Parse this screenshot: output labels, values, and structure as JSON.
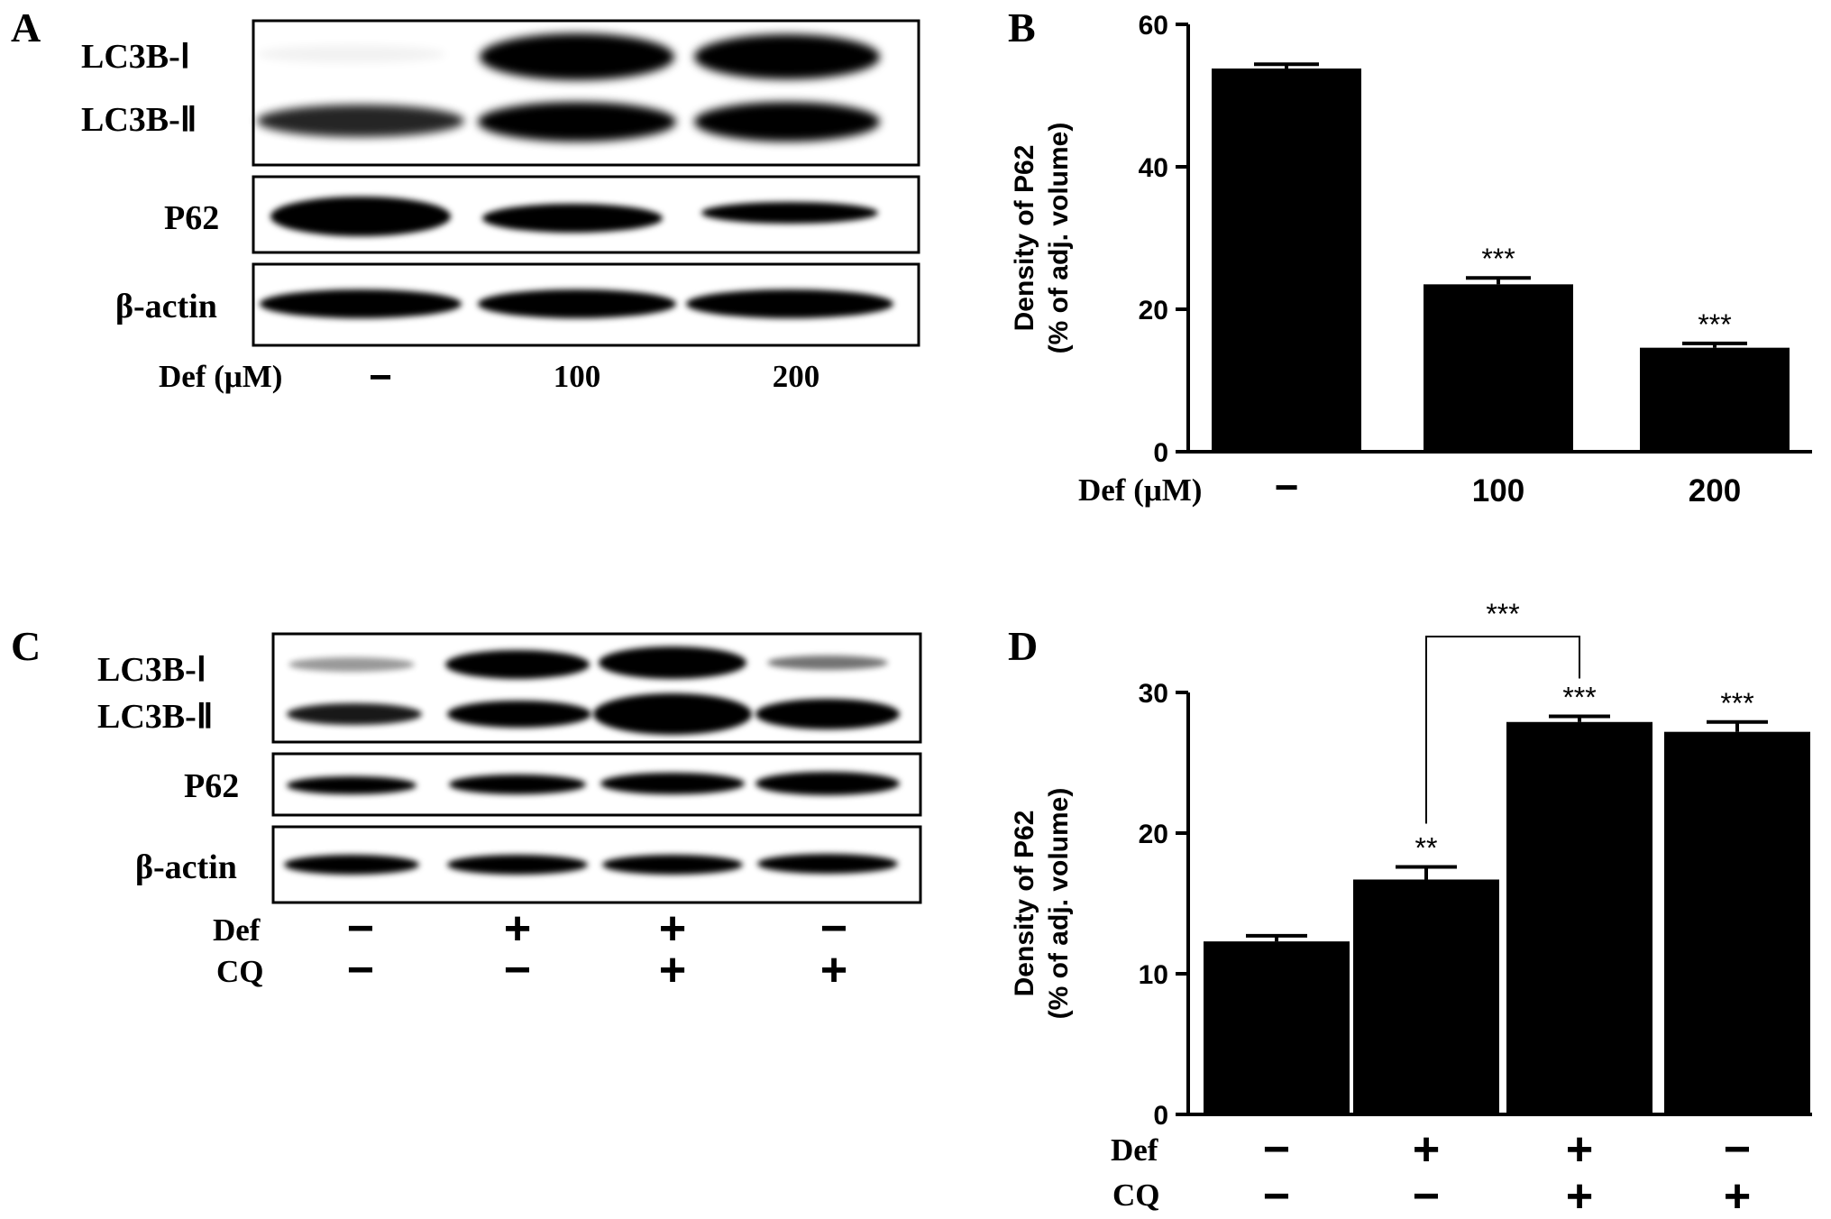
{
  "panels": {
    "A": {
      "letter": "A",
      "rows": [
        {
          "label": "LC3B-Ⅰ"
        },
        {
          "label": "LC3B-Ⅱ"
        },
        {
          "label": "P62"
        },
        {
          "label": "β-actin"
        }
      ],
      "condition": {
        "label": "Def (μM)",
        "values": [
          "−",
          "100",
          "200"
        ]
      }
    },
    "B": {
      "letter": "B"
    },
    "C": {
      "letter": "C",
      "rows": [
        {
          "label": "LC3B-Ⅰ"
        },
        {
          "label": "LC3B-Ⅱ"
        },
        {
          "label": "P62"
        },
        {
          "label": "β-actin"
        }
      ],
      "conditions": [
        {
          "label": "Def",
          "values": [
            "−",
            "+",
            "+",
            "−"
          ]
        },
        {
          "label": "CQ",
          "values": [
            "−",
            "−",
            "+",
            "+"
          ]
        }
      ]
    },
    "D": {
      "letter": "D"
    }
  },
  "chart_data": [
    {
      "panel": "B",
      "type": "bar",
      "title": "",
      "xlabel": "",
      "ylabel": "Density of P62",
      "ylabel2": "(% of adj. volume)",
      "ylim": [
        0,
        60
      ],
      "yticks": [
        0,
        20,
        40,
        60
      ],
      "bar_color": "#000000",
      "categories": [
        "−",
        "100",
        "200"
      ],
      "category_label": "Def (μM)",
      "values": [
        53.8,
        23.5,
        14.6
      ],
      "errors": [
        0.6,
        0.9,
        0.6
      ],
      "annotations": [
        "",
        "***",
        "***"
      ]
    },
    {
      "panel": "D",
      "type": "bar",
      "title": "",
      "xlabel": "",
      "ylabel": "Density of P62",
      "ylabel2": "(% of adj. volume)",
      "ylim": [
        0,
        30
      ],
      "yticks": [
        0,
        10,
        20,
        30
      ],
      "bar_color": "#000000",
      "categories": [
        "Def − / CQ −",
        "Def + / CQ −",
        "Def + / CQ +",
        "Def − / CQ +"
      ],
      "condition_rows": [
        {
          "label": "Def",
          "values": [
            "−",
            "+",
            "+",
            "−"
          ]
        },
        {
          "label": "CQ",
          "values": [
            "−",
            "−",
            "+",
            "+"
          ]
        }
      ],
      "values": [
        12.3,
        16.7,
        27.9,
        27.2
      ],
      "errors": [
        0.4,
        0.9,
        0.4,
        0.7
      ],
      "annotations": [
        "",
        "**",
        "***",
        "***"
      ],
      "bracket": {
        "from": 1,
        "to": 2,
        "label": "***"
      }
    }
  ]
}
